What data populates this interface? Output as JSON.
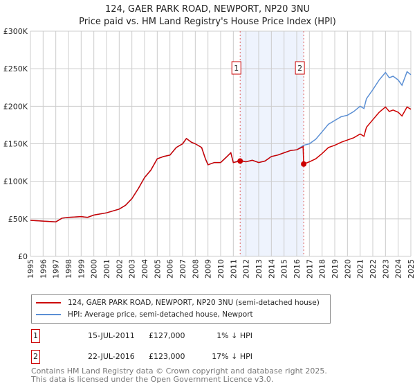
{
  "title": "124, GAER PARK ROAD, NEWPORT, NP20 3NU",
  "subtitle": "Price paid vs. HM Land Registry's House Price Index (HPI)",
  "colors": {
    "property": "#cc0000",
    "hpi": "#5b8fd4",
    "shade": "#eef3fd"
  },
  "chart_data": {
    "type": "line",
    "title": "124, GAER PARK ROAD, NEWPORT, NP20 3NU",
    "xlim": [
      1995,
      2025
    ],
    "ylim": [
      0,
      300000
    ],
    "x_ticks": [
      "1995",
      "1996",
      "1997",
      "1998",
      "1999",
      "2000",
      "2001",
      "2002",
      "2003",
      "2004",
      "2005",
      "2006",
      "2007",
      "2008",
      "2009",
      "2010",
      "2011",
      "2012",
      "2013",
      "2014",
      "2015",
      "2016",
      "2017",
      "2018",
      "2019",
      "2020",
      "2021",
      "2022",
      "2023",
      "2024",
      "2025"
    ],
    "y_ticks": [
      {
        "v": 0,
        "label": "£0"
      },
      {
        "v": 50000,
        "label": "£50K"
      },
      {
        "v": 100000,
        "label": "£100K"
      },
      {
        "v": 150000,
        "label": "£150K"
      },
      {
        "v": 200000,
        "label": "£200K"
      },
      {
        "v": 250000,
        "label": "£250K"
      },
      {
        "v": 300000,
        "label": "£300K"
      }
    ],
    "grid": true,
    "series": [
      {
        "name": "124, GAER PARK ROAD, NEWPORT, NP20 3NU (semi-detached house)",
        "color": "#cc0000",
        "x": [
          1995,
          1996,
          1997,
          1997.5,
          1998,
          1999,
          1999.5,
          2000,
          2001,
          2002,
          2002.5,
          2003,
          2003.5,
          2004,
          2004.5,
          2005,
          2005.5,
          2006,
          2006.5,
          2007,
          2007.3,
          2007.7,
          2008,
          2008.5,
          2008.8,
          2009,
          2009.5,
          2010,
          2010.5,
          2010.8,
          2011,
          2011.54,
          2012,
          2012.5,
          2013,
          2013.5,
          2014,
          2014.5,
          2015,
          2015.5,
          2016,
          2016.5,
          2016.55,
          2017,
          2017.5,
          2018,
          2018.5,
          2019,
          2019.5,
          2020,
          2020.5,
          2021,
          2021.3,
          2021.5,
          2022,
          2022.5,
          2023,
          2023.3,
          2023.6,
          2024,
          2024.3,
          2024.7,
          2025
        ],
        "y": [
          48000,
          47000,
          46000,
          51000,
          52000,
          53000,
          52000,
          55000,
          58000,
          63000,
          68000,
          77000,
          90000,
          105000,
          115000,
          130000,
          133000,
          135000,
          145000,
          150000,
          157000,
          152000,
          150000,
          145000,
          130000,
          122000,
          125000,
          125000,
          133000,
          138000,
          125000,
          127000,
          126000,
          128000,
          125000,
          127000,
          133000,
          135000,
          138000,
          141000,
          142000,
          146000,
          123000,
          126000,
          130000,
          137000,
          145000,
          148000,
          152000,
          155000,
          158000,
          163000,
          160000,
          172000,
          182000,
          192000,
          199000,
          193000,
          195000,
          192000,
          187000,
          199000,
          196000
        ]
      },
      {
        "name": "HPI: Average price, semi-detached house, Newport",
        "color": "#5b8fd4",
        "x": [
          1995,
          1996,
          1997,
          1997.5,
          1998,
          1999,
          1999.5,
          2000,
          2001,
          2002,
          2002.5,
          2003,
          2003.5,
          2004,
          2004.5,
          2005,
          2005.5,
          2006,
          2006.5,
          2007,
          2007.3,
          2007.7,
          2008,
          2008.5,
          2008.8,
          2009,
          2009.5,
          2010,
          2010.5,
          2010.8,
          2011,
          2011.54,
          2012,
          2012.5,
          2013,
          2013.5,
          2014,
          2014.5,
          2015,
          2015.5,
          2016,
          2016.55,
          2017,
          2017.5,
          2018,
          2018.5,
          2019,
          2019.5,
          2020,
          2020.5,
          2021,
          2021.3,
          2021.5,
          2022,
          2022.5,
          2023,
          2023.3,
          2023.6,
          2024,
          2024.3,
          2024.7,
          2025
        ],
        "y": [
          48000,
          47000,
          46000,
          51000,
          52000,
          53000,
          52000,
          55000,
          58000,
          63000,
          68000,
          77000,
          90000,
          105000,
          115000,
          130000,
          133000,
          135000,
          145000,
          150000,
          157000,
          152000,
          150000,
          145000,
          130000,
          122000,
          125000,
          125000,
          133000,
          138000,
          125000,
          128000,
          126000,
          128000,
          125000,
          127000,
          133000,
          135000,
          138000,
          141000,
          142000,
          148000,
          150000,
          156000,
          166000,
          176000,
          181000,
          186000,
          188000,
          193000,
          200000,
          197000,
          210000,
          222000,
          235000,
          245000,
          238000,
          240000,
          235000,
          228000,
          246000,
          242000
        ]
      }
    ],
    "sales": [
      {
        "id": "1",
        "x": 2011.54,
        "y": 127000
      },
      {
        "id": "2",
        "x": 2016.55,
        "y": 123000
      }
    ],
    "shaded_range": [
      2011.54,
      2016.55
    ]
  },
  "legend": {
    "property": "124, GAER PARK ROAD, NEWPORT, NP20 3NU (semi-detached house)",
    "hpi": "HPI: Average price, semi-detached house, Newport"
  },
  "transactions": [
    {
      "id": "1",
      "date": "15-JUL-2011",
      "price": "£127,000",
      "hpi": "1% ↓ HPI"
    },
    {
      "id": "2",
      "date": "22-JUL-2016",
      "price": "£123,000",
      "hpi": "17% ↓ HPI"
    }
  ],
  "footer": {
    "line1": "Contains HM Land Registry data © Crown copyright and database right 2025.",
    "line2": "This data is licensed under the Open Government Licence v3.0."
  }
}
